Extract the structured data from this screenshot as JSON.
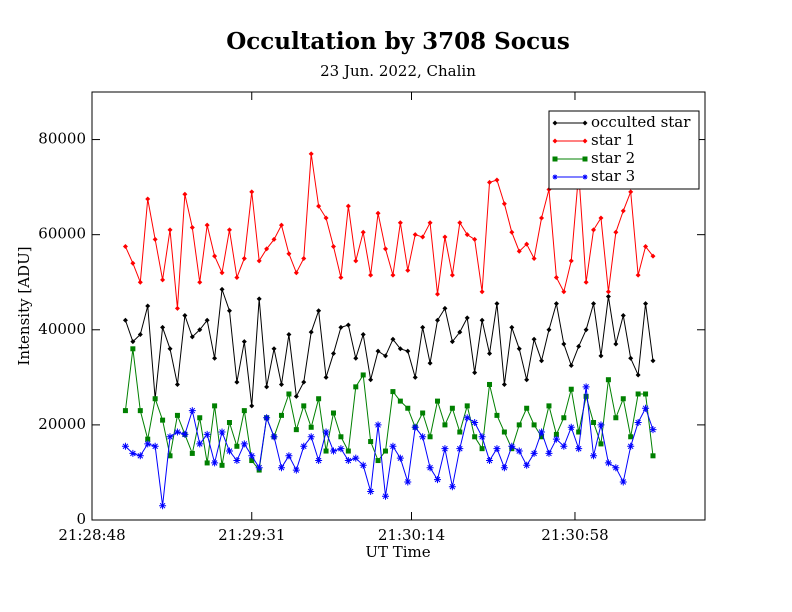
{
  "chart_data": {
    "type": "line",
    "title": "Occultation by 3708 Socus",
    "subtitle": "23 Jun. 2022, Chalin",
    "x_label": "UT Time",
    "y_label": "Intensity [ADU]",
    "legend": "top-right",
    "xlim": [
      77328,
      77493
    ],
    "xticks": [
      {
        "value": 77328,
        "label": "21:28:48"
      },
      {
        "value": 77371,
        "label": "21:29:31"
      },
      {
        "value": 77414,
        "label": "21:30:14"
      },
      {
        "value": 77458,
        "label": "21:30:58"
      }
    ],
    "ylim": [
      0,
      90000
    ],
    "yticks": [
      0,
      20000,
      40000,
      60000,
      80000
    ],
    "x": [
      77337,
      77339,
      77341,
      77343,
      77345,
      77347,
      77349,
      77351,
      77353,
      77355,
      77357,
      77359,
      77361,
      77363,
      77365,
      77367,
      77369,
      77371,
      77373,
      77375,
      77377,
      77379,
      77381,
      77383,
      77385,
      77387,
      77389,
      77391,
      77393,
      77395,
      77397,
      77399,
      77401,
      77403,
      77405,
      77407,
      77409,
      77411,
      77413,
      77415,
      77417,
      77419,
      77421,
      77423,
      77425,
      77427,
      77429,
      77431,
      77433,
      77435,
      77437,
      77439,
      77441,
      77443,
      77445,
      77447,
      77449,
      77451,
      77453,
      77455,
      77457,
      77459,
      77461,
      77463,
      77465,
      77467,
      77469,
      77471,
      77473,
      77475,
      77477,
      77479
    ],
    "series": [
      {
        "name": "occulted star",
        "color": "#000000",
        "marker": "diamond",
        "values": [
          42000,
          37500,
          39000,
          45000,
          25500,
          40500,
          36000,
          28500,
          43000,
          38500,
          40000,
          42000,
          34000,
          48500,
          44000,
          29000,
          37500,
          24000,
          46500,
          28000,
          36000,
          28500,
          39000,
          26000,
          29000,
          39500,
          44000,
          30000,
          35000,
          40500,
          41000,
          34000,
          39000,
          29500,
          35500,
          34500,
          38000,
          36000,
          35500,
          30000,
          40500,
          33000,
          42000,
          44500,
          37500,
          39500,
          42500,
          31000,
          42000,
          35000,
          45500,
          28500,
          40500,
          36000,
          29500,
          38000,
          33500,
          40000,
          45500,
          37000,
          32500,
          36500,
          40000,
          45500,
          34500,
          47000,
          37000,
          43000,
          34000,
          30500,
          45500,
          33500
        ]
      },
      {
        "name": "star 1",
        "color": "#ff0000",
        "marker": "diamond",
        "values": [
          57500,
          54000,
          50000,
          67500,
          59000,
          50500,
          61000,
          44500,
          68500,
          61500,
          50000,
          62000,
          55500,
          52000,
          61000,
          51000,
          55000,
          69000,
          54500,
          57000,
          59000,
          62000,
          56000,
          52000,
          55000,
          77000,
          66000,
          63500,
          57500,
          51000,
          66000,
          54500,
          60500,
          51500,
          64500,
          57000,
          51500,
          62500,
          52500,
          60000,
          59500,
          62500,
          47500,
          59500,
          51500,
          62500,
          60000,
          59000,
          48000,
          71000,
          71500,
          66500,
          60500,
          56500,
          58000,
          55000,
          63500,
          69500,
          51000,
          48000,
          54500,
          73000,
          50000,
          61000,
          63500,
          48000,
          60500,
          65000,
          69000,
          51500,
          57500,
          55500
        ]
      },
      {
        "name": "star 2",
        "color": "#008000",
        "marker": "square",
        "values": [
          23000,
          36000,
          23000,
          17000,
          25500,
          21000,
          13500,
          22000,
          18000,
          14000,
          21500,
          12000,
          24000,
          11500,
          20500,
          15500,
          23000,
          12500,
          10500,
          21500,
          17500,
          22000,
          26500,
          19000,
          24000,
          19500,
          25500,
          14500,
          22500,
          17500,
          14500,
          28000,
          30500,
          16500,
          12500,
          14500,
          27000,
          25000,
          23500,
          19500,
          22500,
          17500,
          25000,
          20000,
          23500,
          18500,
          24000,
          17500,
          15000,
          28500,
          22000,
          18500,
          15000,
          20000,
          23500,
          20000,
          17500,
          24000,
          18000,
          21500,
          27500,
          18500,
          26000,
          20500,
          16000,
          29500,
          21500,
          25500,
          17500,
          26500,
          26500,
          13500
        ]
      },
      {
        "name": "star 3",
        "color": "#0000ff",
        "marker": "star",
        "values": [
          15500,
          14000,
          13500,
          16000,
          15500,
          3000,
          17500,
          18500,
          18000,
          23000,
          16000,
          18000,
          12000,
          18500,
          14500,
          12500,
          16000,
          13500,
          11000,
          21500,
          17500,
          11000,
          13500,
          10500,
          15500,
          17500,
          12500,
          18500,
          14500,
          15000,
          12500,
          13000,
          11500,
          6000,
          20000,
          5000,
          15500,
          13000,
          8000,
          19500,
          17500,
          11000,
          8500,
          15000,
          7000,
          15000,
          21500,
          20500,
          17500,
          12500,
          15000,
          11000,
          15500,
          14500,
          11500,
          14000,
          18500,
          14000,
          17000,
          15500,
          19500,
          15000,
          28000,
          13500,
          20000,
          12000,
          11000,
          8000,
          15500,
          20500,
          23500,
          19000
        ]
      }
    ]
  }
}
